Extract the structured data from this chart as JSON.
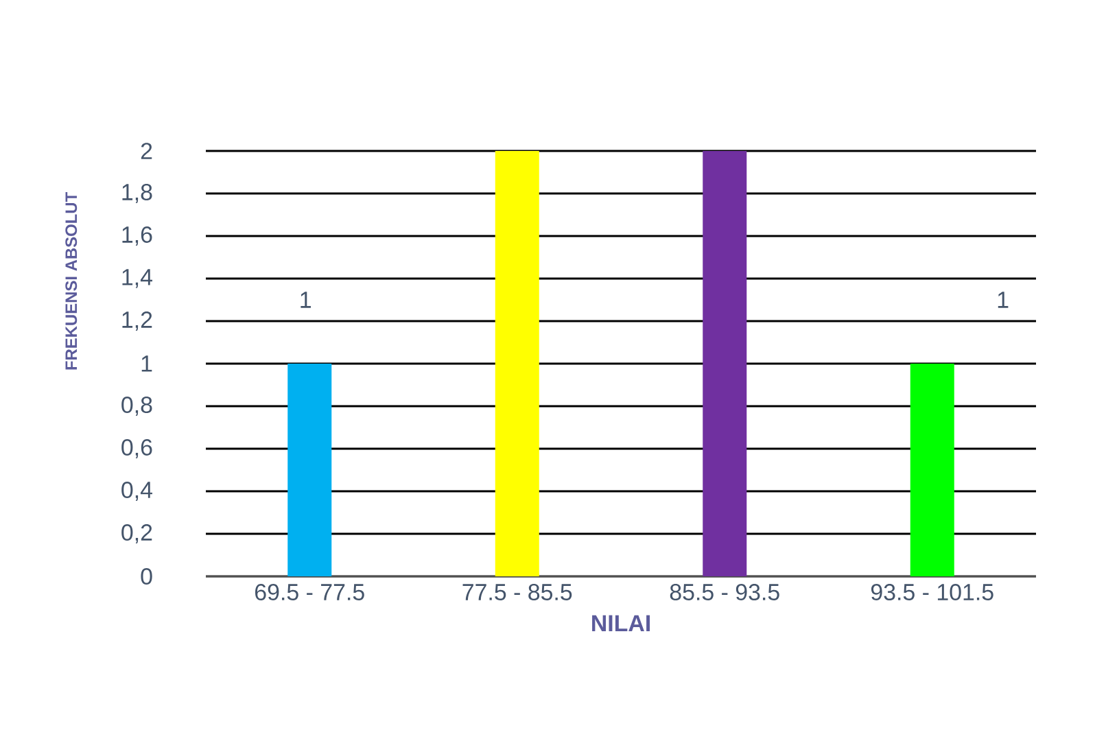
{
  "chart_data": {
    "type": "bar",
    "xlabel": "NILAI",
    "ylabel": "FREKUENSI ABSOLUT",
    "categories": [
      "69.5 - 77.5",
      "77.5 - 85.5",
      "85.5 - 93.5",
      "93.5 - 101.5"
    ],
    "values": [
      1,
      2,
      2,
      1
    ],
    "colors": [
      "#00b0f0",
      "#ffff00",
      "#7030a0",
      "#00ff00"
    ],
    "ylim": [
      0,
      2
    ],
    "yticks": [
      0,
      {
        "value": 0.2,
        "label": "0,2"
      },
      {
        "value": 0.4,
        "label": "0,4"
      },
      {
        "value": 0.6,
        "label": "0,6"
      },
      {
        "value": 0.8,
        "label": "0,8"
      },
      1,
      {
        "value": 1.2,
        "label": "1,2"
      },
      {
        "value": 1.4,
        "label": "1,4"
      },
      {
        "value": 1.6,
        "label": "1,6"
      },
      {
        "value": 1.8,
        "label": "1,8"
      },
      2
    ],
    "grid": "y",
    "annotations": [
      "1",
      "1"
    ]
  }
}
